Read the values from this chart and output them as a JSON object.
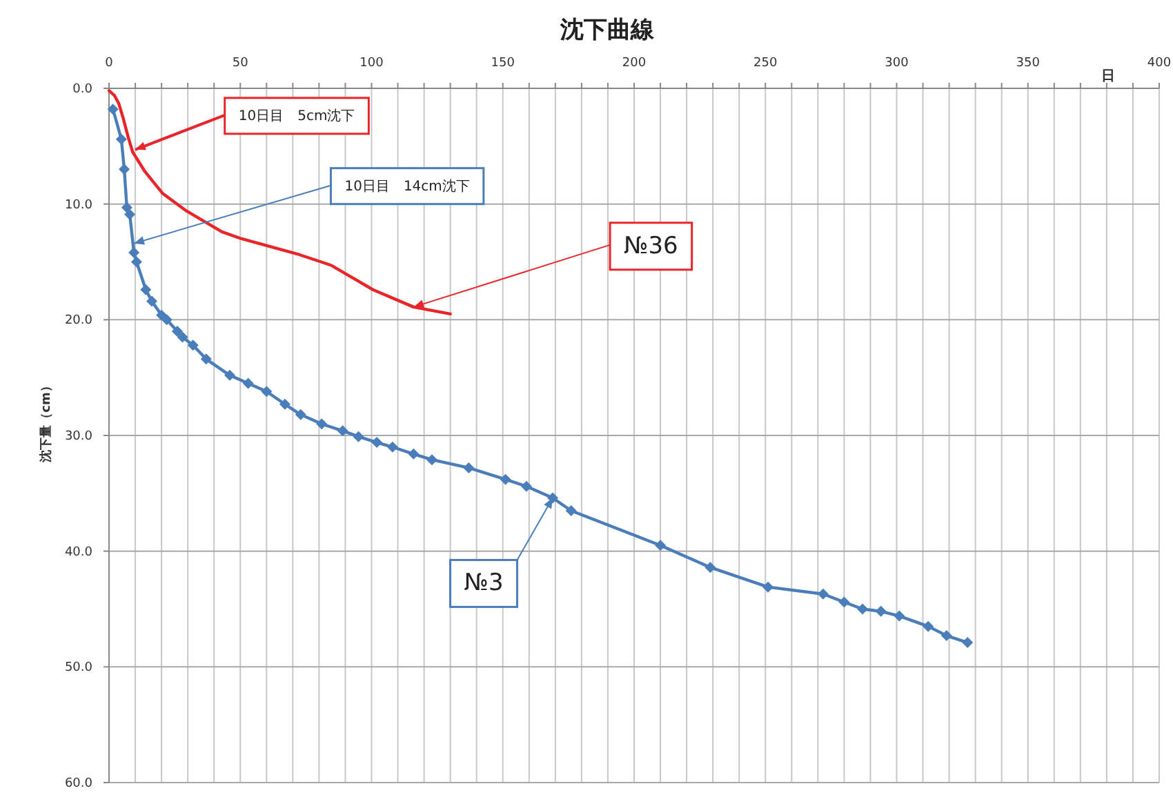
{
  "chart_data": {
    "type": "line",
    "title": "沈下曲線",
    "xlabel": "日",
    "ylabel": "沈下量（cm）",
    "xlim": [
      0,
      400
    ],
    "ylim": [
      60,
      0
    ],
    "xticks": [
      0,
      {
        "value": 10,
        "label": null
      },
      {
        "value": 20,
        "label": null
      },
      {
        "value": 30,
        "label": null
      },
      {
        "value": 40,
        "label": null
      },
      50,
      {
        "value": 60,
        "label": null
      },
      {
        "value": 70,
        "label": null
      },
      {
        "value": 80,
        "label": null
      },
      {
        "value": 90,
        "label": null
      },
      100,
      {
        "value": 110,
        "label": null
      },
      {
        "value": 120,
        "label": null
      },
      {
        "value": 130,
        "label": null
      },
      {
        "value": 140,
        "label": null
      },
      150,
      {
        "value": 160,
        "label": null
      },
      {
        "value": 170,
        "label": null
      },
      {
        "value": 180,
        "label": null
      },
      {
        "value": 190,
        "label": null
      },
      200,
      {
        "value": 210,
        "label": null
      },
      {
        "value": 220,
        "label": null
      },
      {
        "value": 230,
        "label": null
      },
      {
        "value": 240,
        "label": null
      },
      250,
      {
        "value": 260,
        "label": null
      },
      {
        "value": 270,
        "label": null
      },
      {
        "value": 280,
        "label": null
      },
      {
        "value": 290,
        "label": null
      },
      300,
      {
        "value": 310,
        "label": null
      },
      {
        "value": 320,
        "label": null
      },
      {
        "value": 330,
        "label": null
      },
      {
        "value": 340,
        "label": null
      },
      350,
      {
        "value": 360,
        "label": null
      },
      {
        "value": 370,
        "label": null
      },
      {
        "value": 380,
        "label": null
      },
      {
        "value": 390,
        "label": null
      },
      400
    ],
    "yticks": [
      {
        "value": 0,
        "label": "0.0"
      },
      {
        "value": 10,
        "label": "10.0"
      },
      {
        "value": 20,
        "label": "20.0"
      },
      {
        "value": 30,
        "label": "30.0"
      },
      {
        "value": 40,
        "label": "40.0"
      },
      {
        "value": 50,
        "label": "50.0"
      },
      {
        "value": 60,
        "label": "60.0"
      }
    ],
    "grid": true,
    "series": [
      {
        "name": "№36",
        "color": "#e8262a",
        "marker": "none",
        "x": [
          0,
          2,
          3.7,
          5.3,
          7.4,
          9,
          13.7,
          20.5,
          29.5,
          43,
          50.5,
          71.5,
          84.7,
          100.5,
          116,
          130
        ],
        "values": [
          0.2,
          0.6,
          1.3,
          2.5,
          4.3,
          5.5,
          7.2,
          9.1,
          10.6,
          12.4,
          13.0,
          14.3,
          15.3,
          17.4,
          18.9,
          19.5
        ]
      },
      {
        "name": "№3",
        "color": "#4a7ebb",
        "marker": "diamond",
        "x": [
          1.5,
          4.7,
          5.8,
          6.8,
          7.9,
          9.5,
          10.5,
          14,
          16.3,
          20,
          22,
          26,
          28,
          32,
          37,
          46,
          53,
          60,
          67,
          73,
          81,
          89,
          95,
          102,
          108,
          116,
          123,
          137,
          151,
          159,
          169,
          176,
          210,
          229,
          251,
          272,
          280,
          287,
          294,
          301,
          312,
          319,
          327
        ],
        "values": [
          1.8,
          4.4,
          7.0,
          10.3,
          10.9,
          14.2,
          15.0,
          17.4,
          18.4,
          19.6,
          20.0,
          21.0,
          21.5,
          22.2,
          23.4,
          24.8,
          25.5,
          26.2,
          27.3,
          28.2,
          29.0,
          29.6,
          30.1,
          30.6,
          31.0,
          31.6,
          32.1,
          32.8,
          33.8,
          34.4,
          35.4,
          36.5,
          39.5,
          41.4,
          43.1,
          43.7,
          44.4,
          45.0,
          45.2,
          45.6,
          46.5,
          47.3,
          47.9
        ]
      }
    ],
    "annotations": [
      {
        "text": "10日目　5cm沈下",
        "x": 10,
        "y": 5.3
      },
      {
        "text": "10日目　14cm沈下",
        "x": 9.5,
        "y": 13.4
      }
    ]
  }
}
